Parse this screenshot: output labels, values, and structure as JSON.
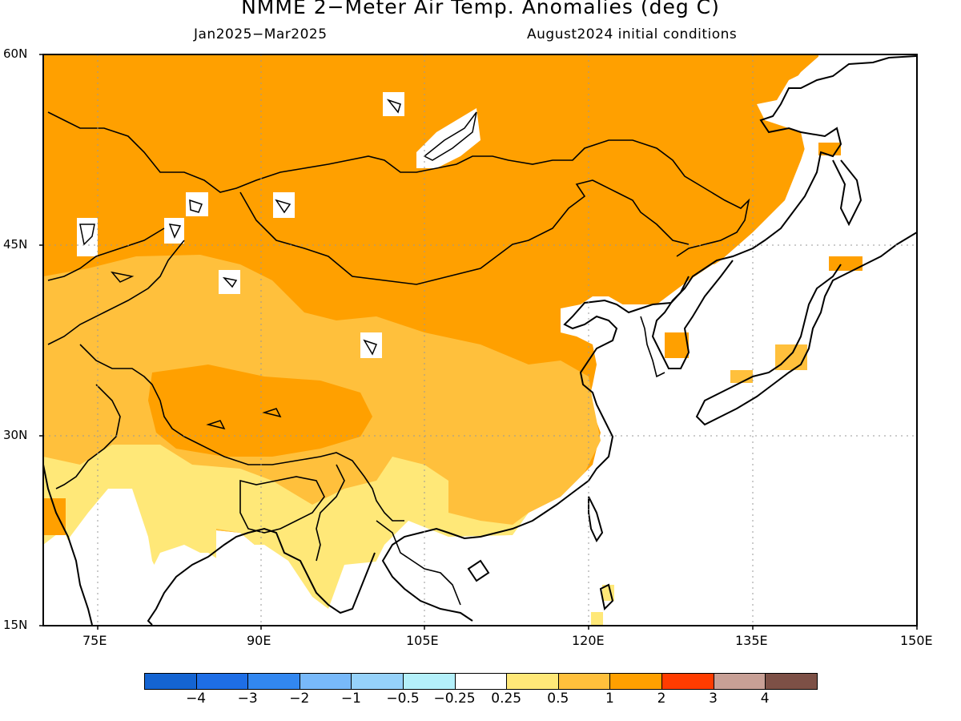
{
  "title": "NMME 2−Meter Air Temp. Anomalies (deg C)",
  "subtitle_left": "Jan2025−Mar2025",
  "subtitle_right": "August2024 initial conditions",
  "lat_labels": [
    "60N",
    "45N",
    "30N",
    "15N"
  ],
  "lon_labels": [
    "75E",
    "90E",
    "105E",
    "120E",
    "135E",
    "150E"
  ],
  "colorbar": {
    "colors": [
      "#1464d2",
      "#1e6ee6",
      "#3287f0",
      "#78b9fa",
      "#96d2fa",
      "#b4f0fa",
      "#ffffff",
      "#ffe878",
      "#ffc03c",
      "#ffa000",
      "#ff3c00",
      "#c8a096",
      "#7d5046"
    ],
    "labels": [
      "−4",
      "−3",
      "−2",
      "−1",
      "−0.5",
      "−0.25",
      "0.25",
      "0.5",
      "1",
      "2",
      "3",
      "4"
    ]
  },
  "legend_categories": [
    "<0.25 (white)",
    "0.25-0.5",
    "0.5-1",
    "1-2"
  ],
  "map_colors": {
    "weak": "#ffe878",
    "moderate": "#ffc03c",
    "strong": "#ffa000"
  }
}
